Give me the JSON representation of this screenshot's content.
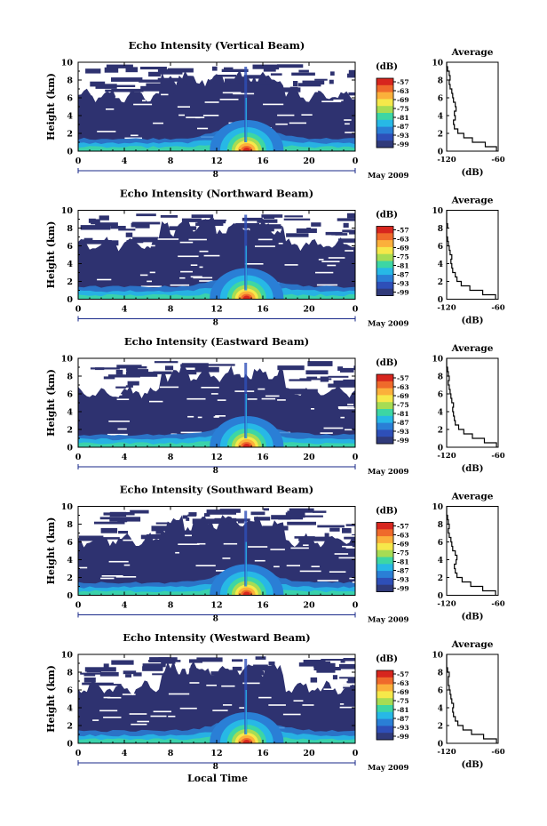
{
  "figure": {
    "x_axis_title": "Local Time",
    "colorbar_unit": "(dB)",
    "colorbar_ticks": [
      "-57",
      "-63",
      "-69",
      "-75",
      "-81",
      "-87",
      "-93",
      "-99"
    ],
    "colorbar_colors": [
      "#d7261e",
      "#ef6a2b",
      "#fbb03b",
      "#f6e84a",
      "#a6dc54",
      "#3dd6a4",
      "#27b8e6",
      "#2a7fd6",
      "#2e4fb8",
      "#303a7a"
    ],
    "background_color": "#2e3270",
    "date_label": "May 2009",
    "day_marker": "8",
    "avg_title": "Average",
    "avg_xlabel": "(dB)"
  },
  "chart_data": [
    {
      "type": "heatmap",
      "title": "Echo Intensity (Vertical Beam)",
      "xlabel": "",
      "ylabel": "Height (km)",
      "xticks": [
        "0",
        "4",
        "8",
        "12",
        "16",
        "20",
        "0"
      ],
      "yticks": [
        "0",
        "2",
        "4",
        "6",
        "8",
        "10"
      ],
      "xlim": [
        0,
        24
      ],
      "ylim": [
        0,
        10
      ],
      "avg_profile": {
        "xlim": [
          -120,
          -60
        ],
        "xticks": [
          "-120",
          "-60"
        ],
        "yticks": [
          "0",
          "2",
          "4",
          "6",
          "8",
          "10"
        ],
        "height_km": [
          0,
          0.5,
          1,
          1.5,
          2,
          2.5,
          3,
          3.5,
          4,
          4.5,
          5,
          5.5,
          6,
          6.5,
          7,
          7.5,
          8,
          8.5,
          9,
          9.5,
          10
        ],
        "db": [
          -62,
          -75,
          -90,
          -100,
          -107,
          -111,
          -112,
          -110,
          -111,
          -109,
          -110,
          -112,
          -113,
          -114,
          -116,
          -117,
          -116,
          -117,
          -119,
          -120,
          -120
        ]
      }
    },
    {
      "type": "heatmap",
      "title": "Echo Intensity (Northward Beam)",
      "xlabel": "",
      "ylabel": "Height (km)",
      "xticks": [
        "0",
        "4",
        "8",
        "12",
        "16",
        "20",
        "0"
      ],
      "yticks": [
        "0",
        "2",
        "4",
        "6",
        "8",
        "10"
      ],
      "xlim": [
        0,
        24
      ],
      "ylim": [
        0,
        10
      ],
      "avg_profile": {
        "xlim": [
          -120,
          -60
        ],
        "xticks": [
          "-120",
          "-60"
        ],
        "yticks": [
          "0",
          "2",
          "4",
          "6",
          "8",
          "10"
        ],
        "height_km": [
          0,
          0.5,
          1,
          1.5,
          2,
          2.5,
          3,
          3.5,
          4,
          4.5,
          5,
          5.5,
          6,
          6.5,
          7,
          7.5,
          8,
          8.5,
          9,
          9.5,
          10
        ],
        "db": [
          -63,
          -78,
          -93,
          -103,
          -108,
          -110,
          -113,
          -114,
          -115,
          -114,
          -116,
          -117,
          -118,
          -119,
          -120,
          -120,
          -119,
          -120,
          -120,
          -120,
          -120
        ]
      }
    },
    {
      "type": "heatmap",
      "title": "Echo Intensity (Eastward Beam)",
      "xlabel": "",
      "ylabel": "Height (km)",
      "xticks": [
        "0",
        "4",
        "8",
        "12",
        "16",
        "20",
        "0"
      ],
      "yticks": [
        "0",
        "2",
        "4",
        "6",
        "8",
        "10"
      ],
      "xlim": [
        0,
        24
      ],
      "ylim": [
        0,
        10
      ],
      "avg_profile": {
        "xlim": [
          -120,
          -60
        ],
        "xticks": [
          "-120",
          "-60"
        ],
        "yticks": [
          "0",
          "2",
          "4",
          "6",
          "8",
          "10"
        ],
        "height_km": [
          0,
          0.5,
          1,
          1.5,
          2,
          2.5,
          3,
          3.5,
          4,
          4.5,
          5,
          5.5,
          6,
          6.5,
          7,
          7.5,
          8,
          8.5,
          9,
          9.5,
          10
        ],
        "db": [
          -62,
          -76,
          -90,
          -100,
          -106,
          -110,
          -111,
          -112,
          -113,
          -112,
          -114,
          -115,
          -116,
          -117,
          -118,
          -117,
          -118,
          -119,
          -120,
          -120,
          -120
        ]
      }
    },
    {
      "type": "heatmap",
      "title": "Echo Intensity (Southward Beam)",
      "xlabel": "",
      "ylabel": "Height (km)",
      "xticks": [
        "0",
        "4",
        "8",
        "12",
        "16",
        "20",
        "0"
      ],
      "yticks": [
        "0",
        "2",
        "4",
        "6",
        "8",
        "10"
      ],
      "xlim": [
        0,
        24
      ],
      "ylim": [
        0,
        10
      ],
      "avg_profile": {
        "xlim": [
          -120,
          -60
        ],
        "xticks": [
          "-120",
          "-60"
        ],
        "yticks": [
          "0",
          "2",
          "4",
          "6",
          "8",
          "10"
        ],
        "height_km": [
          0,
          0.5,
          1,
          1.5,
          2,
          2.5,
          3,
          3.5,
          4,
          4.5,
          5,
          5.5,
          6,
          6.5,
          7,
          7.5,
          8,
          8.5,
          9,
          9.5,
          10
        ],
        "db": [
          -63,
          -78,
          -92,
          -102,
          -108,
          -110,
          -111,
          -109,
          -108,
          -110,
          -113,
          -114,
          -115,
          -117,
          -118,
          -117,
          -118,
          -119,
          -120,
          -120,
          -120
        ]
      }
    },
    {
      "type": "heatmap",
      "title": "Echo Intensity (Westward Beam)",
      "xlabel": "Local Time",
      "ylabel": "Height (km)",
      "xticks": [
        "0",
        "4",
        "8",
        "12",
        "16",
        "20",
        "0"
      ],
      "yticks": [
        "0",
        "2",
        "4",
        "6",
        "8",
        "10"
      ],
      "xlim": [
        0,
        24
      ],
      "ylim": [
        0,
        10
      ],
      "avg_profile": {
        "xlim": [
          -120,
          -60
        ],
        "xticks": [
          "-120",
          "-60"
        ],
        "yticks": [
          "0",
          "2",
          "4",
          "6",
          "8",
          "10"
        ],
        "height_km": [
          0,
          0.5,
          1,
          1.5,
          2,
          2.5,
          3,
          3.5,
          4,
          4.5,
          5,
          5.5,
          6,
          6.5,
          7,
          7.5,
          8,
          8.5,
          9,
          9.5,
          10
        ],
        "db": [
          -62,
          -77,
          -91,
          -101,
          -107,
          -110,
          -112,
          -113,
          -112,
          -114,
          -115,
          -116,
          -117,
          -118,
          -118,
          -117,
          -119,
          -120,
          -120,
          -120,
          -120
        ]
      }
    }
  ]
}
